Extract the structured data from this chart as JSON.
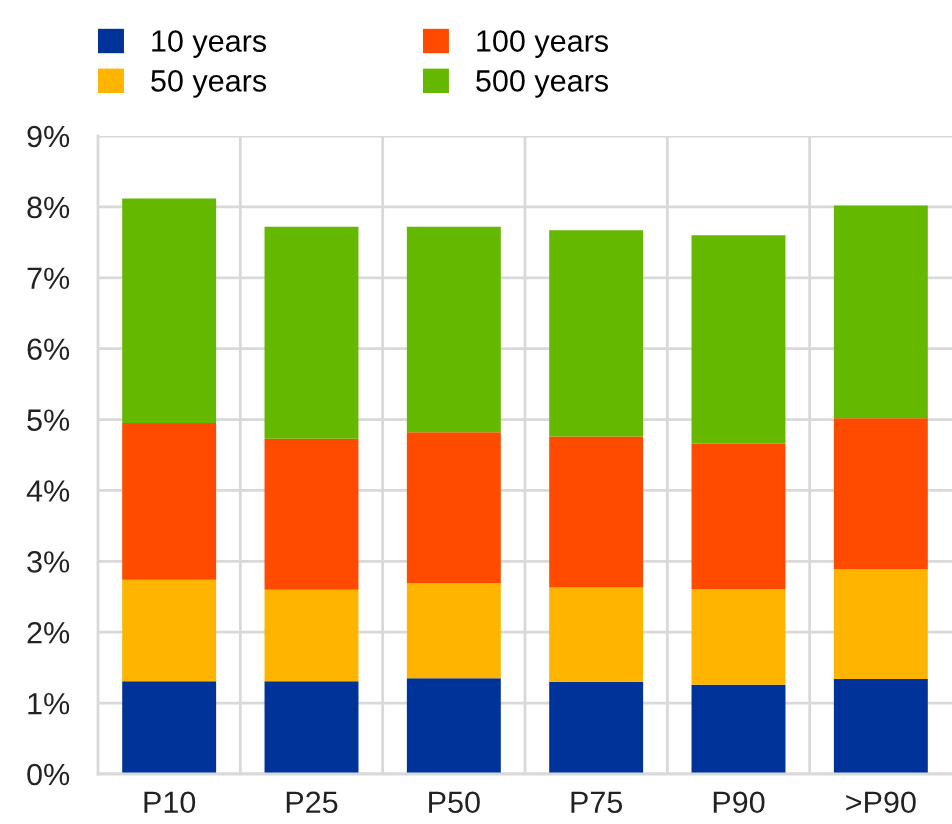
{
  "chart_data": {
    "type": "bar",
    "stacked": true,
    "categories": [
      "P10",
      "P25",
      "P50",
      "P75",
      "P90",
      ">P90"
    ],
    "series": [
      {
        "name": "10 years",
        "color": "#003399",
        "values": [
          1.31,
          1.31,
          1.35,
          1.3,
          1.26,
          1.34
        ]
      },
      {
        "name": "50 years",
        "color": "#ffb400",
        "values": [
          1.43,
          1.29,
          1.34,
          1.33,
          1.35,
          1.55
        ]
      },
      {
        "name": "100 years",
        "color": "#ff4b00",
        "values": [
          2.21,
          2.13,
          2.13,
          2.13,
          2.05,
          2.13
        ]
      },
      {
        "name": "500 years",
        "color": "#65b800",
        "values": [
          3.17,
          2.99,
          2.9,
          2.91,
          2.94,
          3.0
        ]
      }
    ],
    "ylim": [
      0,
      9
    ],
    "yticks": [
      {
        "value": 0,
        "label": "0%"
      },
      {
        "value": 1,
        "label": "1%"
      },
      {
        "value": 2,
        "label": "2%"
      },
      {
        "value": 3,
        "label": "3%"
      },
      {
        "value": 4,
        "label": "4%"
      },
      {
        "value": 5,
        "label": "5%"
      },
      {
        "value": 6,
        "label": "6%"
      },
      {
        "value": 7,
        "label": "7%"
      },
      {
        "value": 8,
        "label": "8%"
      },
      {
        "value": 9,
        "label": "9%"
      }
    ],
    "grid": true,
    "legend": "top left"
  }
}
